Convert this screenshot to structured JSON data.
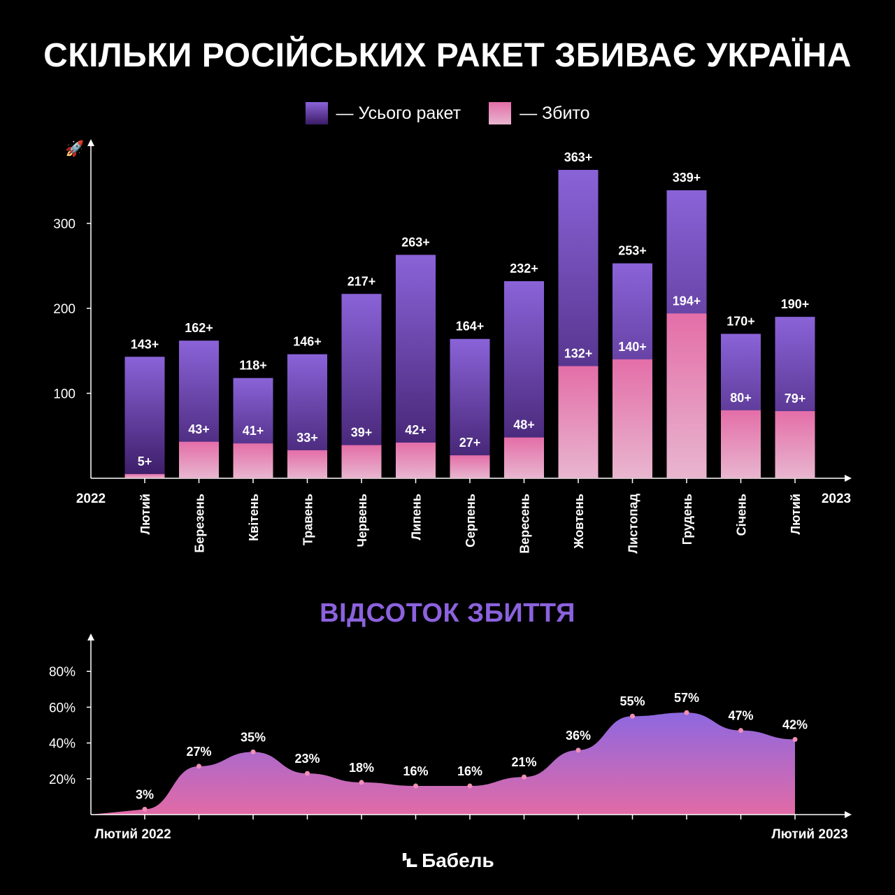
{
  "header": {
    "title": "СКІЛЬКИ РОСІЙСЬКИХ РАКЕТ ЗБИВАЄ УКРАЇНА",
    "subtitle": "ВІДСОТОК ЗБИТТЯ",
    "logo": "Бабель",
    "watermark": "Бабель"
  },
  "legend": {
    "total_label": "— Усього ракет",
    "down_label": "— Збито"
  },
  "colors": {
    "total_top": "#8a63d8",
    "total_bottom": "#3b1c66",
    "down_top": "#e46ea8",
    "down_bottom": "#e8b6cf",
    "subtitle": "#8c62de",
    "point": "#f08fb6"
  },
  "chart_data": [
    {
      "type": "bar",
      "categories": [
        "Лютий",
        "Березень",
        "Квітень",
        "Травень",
        "Червень",
        "Липень",
        "Серпень",
        "Вересень",
        "Жовтень",
        "Листопад",
        "Грудень",
        "Січень",
        "Лютий"
      ],
      "series": [
        {
          "name": "Усього ракет",
          "values": [
            143,
            162,
            118,
            146,
            217,
            263,
            164,
            232,
            363,
            253,
            339,
            170,
            190
          ],
          "labels": [
            "143+",
            "162+",
            "118+",
            "146+",
            "217+",
            "263+",
            "164+",
            "232+",
            "363+",
            "253+",
            "339+",
            "170+",
            "190+"
          ]
        },
        {
          "name": "Збито",
          "values": [
            5,
            43,
            41,
            33,
            39,
            42,
            27,
            48,
            132,
            140,
            194,
            80,
            79
          ],
          "labels": [
            "5+",
            "43+",
            "41+",
            "33+",
            "39+",
            "42+",
            "27+",
            "48+",
            "132+",
            "140+",
            "194+",
            "80+",
            "79+"
          ]
        }
      ],
      "yticks": [
        "100",
        "200",
        "300"
      ],
      "ylim": [
        0,
        390
      ],
      "x_start_label": "2022",
      "x_end_label": "2023",
      "legend": "top-center",
      "grid": false
    },
    {
      "type": "area",
      "values": [
        3,
        27,
        35,
        23,
        18,
        16,
        16,
        21,
        36,
        55,
        57,
        47,
        42
      ],
      "labels": [
        "3%",
        "27%",
        "35%",
        "23%",
        "18%",
        "16%",
        "16%",
        "21%",
        "36%",
        "55%",
        "57%",
        "47%",
        "42%"
      ],
      "yticks": [
        "20%",
        "40%",
        "60%",
        "80%"
      ],
      "ylim": [
        0,
        90
      ],
      "x_start_label": "Лютий 2022",
      "x_end_label": "Лютий 2023",
      "grid": false
    }
  ]
}
